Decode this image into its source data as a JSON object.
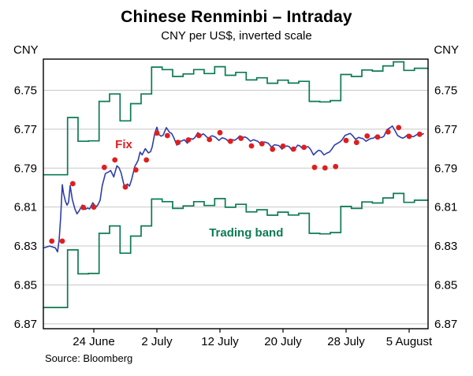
{
  "chart_data": {
    "type": "line",
    "title": "Chinese Renminbi – Intraday",
    "subtitle": "CNY per US$, inverted scale",
    "source": "Source: Bloomberg",
    "y_axis": {
      "unit": "CNY",
      "inverted": true,
      "range": [
        6.734,
        6.8725
      ],
      "ticks": [
        6.75,
        6.77,
        6.79,
        6.81,
        6.83,
        6.85,
        6.87
      ]
    },
    "x_axis": {
      "domain": [
        -1.3,
        35.3
      ],
      "ticks": [
        {
          "label": "24 June",
          "day": 3.5
        },
        {
          "label": "2 July",
          "day": 9.5
        },
        {
          "label": "12 July",
          "day": 15.5
        },
        {
          "label": "20 July",
          "day": 21.5
        },
        {
          "label": "28 July",
          "day": 27.5
        },
        {
          "label": "5 August",
          "day": 33.5
        }
      ]
    },
    "colors": {
      "spot": "#2e3ea9",
      "fix": "#e01e1e",
      "band": "#0c7b52",
      "grid": "#c8c8c8",
      "frame": "#000000"
    },
    "series": {
      "spot": {
        "name": "Intraday spot rate",
        "points": [
          [
            -1.25,
            6.831
          ],
          [
            -0.7,
            6.83
          ],
          [
            -0.15,
            6.831
          ],
          [
            0.05,
            6.833
          ],
          [
            0.2,
            6.827
          ],
          [
            0.35,
            6.815
          ],
          [
            0.5,
            6.7985
          ],
          [
            0.62,
            6.803
          ],
          [
            0.8,
            6.807
          ],
          [
            0.95,
            6.809
          ],
          [
            1.1,
            6.8075
          ],
          [
            1.25,
            6.799
          ],
          [
            1.45,
            6.806
          ],
          [
            1.7,
            6.811
          ],
          [
            1.9,
            6.8135
          ],
          [
            2.1,
            6.812
          ],
          [
            2.4,
            6.809
          ],
          [
            2.7,
            6.8112
          ],
          [
            2.9,
            6.8105
          ],
          [
            3.1,
            6.811
          ],
          [
            3.4,
            6.8078
          ],
          [
            3.7,
            6.81
          ],
          [
            3.9,
            6.8088
          ],
          [
            4.1,
            6.8065
          ],
          [
            4.3,
            6.799
          ],
          [
            4.6,
            6.7928
          ],
          [
            4.9,
            6.792
          ],
          [
            5.1,
            6.7912
          ],
          [
            5.4,
            6.7945
          ],
          [
            5.7,
            6.7888
          ],
          [
            5.9,
            6.7898
          ],
          [
            6.1,
            6.7925
          ],
          [
            6.4,
            6.7995
          ],
          [
            6.7,
            6.7982
          ],
          [
            6.9,
            6.7992
          ],
          [
            7.1,
            6.7958
          ],
          [
            7.4,
            6.7892
          ],
          [
            7.7,
            6.7862
          ],
          [
            7.9,
            6.7818
          ],
          [
            8.1,
            6.7832
          ],
          [
            8.4,
            6.78
          ],
          [
            8.7,
            6.7822
          ],
          [
            8.9,
            6.7815
          ],
          [
            9.05,
            6.7792
          ],
          [
            9.3,
            6.7722
          ],
          [
            9.5,
            6.769
          ],
          [
            9.7,
            6.7728
          ],
          [
            9.9,
            6.7736
          ],
          [
            10.1,
            6.773
          ],
          [
            10.4,
            6.7692
          ],
          [
            10.7,
            6.7716
          ],
          [
            10.9,
            6.7722
          ],
          [
            11.1,
            6.7742
          ],
          [
            11.4,
            6.7782
          ],
          [
            11.7,
            6.7762
          ],
          [
            11.9,
            6.776
          ],
          [
            12.1,
            6.7754
          ],
          [
            12.4,
            6.7772
          ],
          [
            12.7,
            6.7748
          ],
          [
            12.9,
            6.7752
          ],
          [
            13.1,
            6.7744
          ],
          [
            13.4,
            6.7718
          ],
          [
            13.7,
            6.7732
          ],
          [
            13.9,
            6.7724
          ],
          [
            14.1,
            6.7732
          ],
          [
            14.4,
            6.7748
          ],
          [
            14.7,
            6.7734
          ],
          [
            14.9,
            6.7736
          ],
          [
            15.1,
            6.7742
          ],
          [
            15.4,
            6.7758
          ],
          [
            15.7,
            6.7744
          ],
          [
            15.9,
            6.7747
          ],
          [
            16.1,
            6.7752
          ],
          [
            16.4,
            6.7768
          ],
          [
            16.7,
            6.7754
          ],
          [
            16.9,
            6.7757
          ],
          [
            17.1,
            6.775
          ],
          [
            17.4,
            6.7734
          ],
          [
            17.7,
            6.7742
          ],
          [
            17.9,
            6.774
          ],
          [
            18.1,
            6.7746
          ],
          [
            18.4,
            6.7762
          ],
          [
            18.7,
            6.7754
          ],
          [
            18.9,
            6.7758
          ],
          [
            19.1,
            6.7762
          ],
          [
            19.4,
            6.7778
          ],
          [
            19.7,
            6.7766
          ],
          [
            19.9,
            6.7768
          ],
          [
            20.1,
            6.7772
          ],
          [
            20.4,
            6.7792
          ],
          [
            20.7,
            6.778
          ],
          [
            20.9,
            6.7782
          ],
          [
            21.1,
            6.7784
          ],
          [
            21.4,
            6.7802
          ],
          [
            21.7,
            6.7788
          ],
          [
            21.9,
            6.7786
          ],
          [
            22.1,
            6.779
          ],
          [
            22.4,
            6.7812
          ],
          [
            22.7,
            6.7796
          ],
          [
            22.9,
            6.7782
          ],
          [
            23.1,
            6.7786
          ],
          [
            23.4,
            6.7802
          ],
          [
            23.7,
            6.7792
          ],
          [
            23.9,
            6.779
          ],
          [
            24.1,
            6.7802
          ],
          [
            24.4,
            6.7832
          ],
          [
            24.7,
            6.7816
          ],
          [
            24.9,
            6.7808
          ],
          [
            25.1,
            6.7812
          ],
          [
            25.4,
            6.7832
          ],
          [
            25.7,
            6.7822
          ],
          [
            25.9,
            6.7818
          ],
          [
            26.1,
            6.7806
          ],
          [
            26.4,
            6.7782
          ],
          [
            26.7,
            6.7772
          ],
          [
            26.9,
            6.7766
          ],
          [
            27.1,
            6.7756
          ],
          [
            27.4,
            6.7732
          ],
          [
            27.7,
            6.7726
          ],
          [
            27.9,
            6.7722
          ],
          [
            28.1,
            6.7732
          ],
          [
            28.4,
            6.7752
          ],
          [
            28.7,
            6.7742
          ],
          [
            28.9,
            6.7746
          ],
          [
            29.1,
            6.7748
          ],
          [
            29.4,
            6.7762
          ],
          [
            29.7,
            6.7752
          ],
          [
            29.9,
            6.7747
          ],
          [
            30.1,
            6.7746
          ],
          [
            30.4,
            6.7732
          ],
          [
            30.7,
            6.7742
          ],
          [
            30.9,
            6.7743
          ],
          [
            31.1,
            6.7736
          ],
          [
            31.4,
            6.7702
          ],
          [
            31.7,
            6.7692
          ],
          [
            31.9,
            6.7684
          ],
          [
            32.1,
            6.7702
          ],
          [
            32.4,
            6.7732
          ],
          [
            32.7,
            6.7742
          ],
          [
            32.9,
            6.7746
          ],
          [
            33.1,
            6.774
          ],
          [
            33.4,
            6.7726
          ],
          [
            33.7,
            6.7736
          ],
          [
            33.9,
            6.7739
          ],
          [
            34.1,
            6.7732
          ],
          [
            34.4,
            6.7722
          ],
          [
            34.7,
            6.7727
          ],
          [
            34.9,
            6.7722
          ]
        ]
      },
      "fix": {
        "name": "Fix",
        "points": [
          [
            -0.5,
            6.8275
          ],
          [
            0.5,
            6.8275
          ],
          [
            1.5,
            6.798
          ],
          [
            2.5,
            6.8102
          ],
          [
            3.5,
            6.81
          ],
          [
            4.5,
            6.7896
          ],
          [
            5.5,
            6.7858
          ],
          [
            6.5,
            6.7997
          ],
          [
            7.5,
            6.7909
          ],
          [
            8.5,
            6.7858
          ],
          [
            9.5,
            6.772
          ],
          [
            10.5,
            6.7733
          ],
          [
            11.5,
            6.7768
          ],
          [
            12.5,
            6.7755
          ],
          [
            13.5,
            6.7733
          ],
          [
            14.5,
            6.7753
          ],
          [
            15.5,
            6.7718
          ],
          [
            16.5,
            6.7762
          ],
          [
            17.5,
            6.7747
          ],
          [
            18.5,
            6.7786
          ],
          [
            19.5,
            6.7775
          ],
          [
            20.5,
            6.7803
          ],
          [
            21.5,
            6.7787
          ],
          [
            22.5,
            6.7802
          ],
          [
            23.5,
            6.7793
          ],
          [
            24.5,
            6.7896
          ],
          [
            25.5,
            6.7899
          ],
          [
            26.5,
            6.7892
          ],
          [
            27.5,
            6.7758
          ],
          [
            28.5,
            6.7768
          ],
          [
            29.5,
            6.7735
          ],
          [
            30.5,
            6.774
          ],
          [
            31.5,
            6.7714
          ],
          [
            32.5,
            6.7692
          ],
          [
            33.5,
            6.7737
          ],
          [
            34.5,
            6.7726
          ]
        ]
      },
      "band_upper": {
        "name": "Trading band (upper)",
        "values": [
          6.7934,
          6.764,
          6.7762,
          6.776,
          6.7557,
          6.7519,
          6.7657,
          6.7569,
          6.7519,
          6.7381,
          6.7394,
          6.7429,
          6.7416,
          6.7394,
          6.7414,
          6.7379,
          6.7423,
          6.7408,
          6.7447,
          6.7436,
          6.7464,
          6.7448,
          6.7463,
          6.7454,
          6.7557,
          6.756,
          6.7553,
          6.7419,
          6.7429,
          6.7396,
          6.7401,
          6.7375,
          6.7354,
          6.7398,
          6.7387
        ]
      },
      "band_lower": {
        "name": "Trading band (lower)",
        "values": [
          6.8616,
          6.832,
          6.8443,
          6.8441,
          6.8235,
          6.8197,
          6.8337,
          6.8249,
          6.8197,
          6.8059,
          6.8072,
          6.8107,
          6.8094,
          6.8072,
          6.8092,
          6.8057,
          6.8101,
          6.8086,
          6.8125,
          6.8114,
          6.8142,
          6.8126,
          6.8141,
          6.8132,
          6.8235,
          6.8238,
          6.8231,
          6.8097,
          6.8107,
          6.8074,
          6.8079,
          6.8053,
          6.803,
          6.8076,
          6.8065
        ]
      }
    },
    "annotations": [
      {
        "text": "Fix",
        "x": 6.35,
        "y": 6.7797,
        "color": "#e01e1e"
      },
      {
        "text": "Trading band",
        "x": 18.0,
        "y": 6.8251,
        "color": "#0c7b52"
      }
    ]
  }
}
